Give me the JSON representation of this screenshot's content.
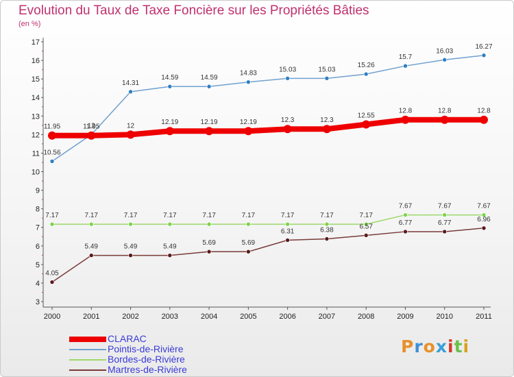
{
  "chart_data": {
    "type": "line",
    "title": "Evolution du Taux de Taxe Foncière sur les Propriétés Bâties",
    "subtitle": "(en %)",
    "xlabel": "",
    "ylabel": "",
    "x": [
      "2000",
      "2001",
      "2002",
      "2003",
      "2004",
      "2005",
      "2006",
      "2007",
      "2008",
      "2009",
      "2010",
      "2011"
    ],
    "ylim": [
      3,
      17
    ],
    "yticks": [
      3,
      4,
      5,
      6,
      7,
      8,
      9,
      10,
      11,
      12,
      13,
      14,
      15,
      16,
      17
    ],
    "grid": false,
    "legend_position": "bottom-left",
    "series": [
      {
        "name": "CLARAC",
        "color": "#ee0000",
        "width": 8,
        "labels_below": false,
        "values": [
          11.95,
          11.95,
          12,
          12.19,
          12.19,
          12.19,
          12.3,
          12.3,
          12.55,
          12.8,
          12.8,
          12.8
        ],
        "labels": [
          "11.95",
          "11.95",
          "12",
          "12.19",
          "12.19",
          "12.19",
          "12.3",
          "12.3",
          "12.55",
          "12.8",
          "12.8",
          "12.8"
        ]
      },
      {
        "name": "Pointis-de-Rivière",
        "color": "#6fa0d0",
        "width": 1.5,
        "marker": "#2f7fc1",
        "labels_below": false,
        "values": [
          10.56,
          12,
          14.31,
          14.59,
          14.59,
          14.83,
          15.03,
          15.03,
          15.26,
          15.7,
          16.03,
          16.27
        ],
        "labels": [
          "10.56",
          "12",
          "14.31",
          "14.59",
          "14.59",
          "14.83",
          "15.03",
          "15.03",
          "15.26",
          "15.7",
          "16.03",
          "16.27"
        ]
      },
      {
        "name": "Bordes-de-Rivière",
        "color": "#9ed86a",
        "width": 1.5,
        "marker": "#7cd44a",
        "labels_below": false,
        "values": [
          7.17,
          7.17,
          7.17,
          7.17,
          7.17,
          7.17,
          7.17,
          7.17,
          7.17,
          7.67,
          7.67,
          7.67
        ],
        "labels": [
          "7.17",
          "7.17",
          "7.17",
          "7.17",
          "7.17",
          "7.17",
          "7.17",
          "7.17",
          "7.17",
          "7.67",
          "7.67",
          "7.67"
        ]
      },
      {
        "name": "Martres-de-Rivière",
        "color": "#7a3a3a",
        "width": 1.5,
        "marker": "#5a1a1a",
        "labels_below": false,
        "values": [
          4.05,
          5.49,
          5.49,
          5.49,
          5.69,
          5.69,
          6.31,
          6.38,
          6.57,
          6.77,
          6.77,
          6.96
        ],
        "labels": [
          "4.05",
          "5.49",
          "5.49",
          "5.49",
          "5.69",
          "5.69",
          "6.31",
          "6.38",
          "6.57",
          "6.77",
          "6.77",
          "6.96"
        ]
      }
    ]
  },
  "branding": {
    "logo_text": "Proxiti",
    "logo_colors": [
      "#e8902a",
      "#3f8fd6",
      "#e8902a",
      "#3aa0d8",
      "#d63a2a",
      "#6cc04a",
      "#d8a020"
    ]
  }
}
